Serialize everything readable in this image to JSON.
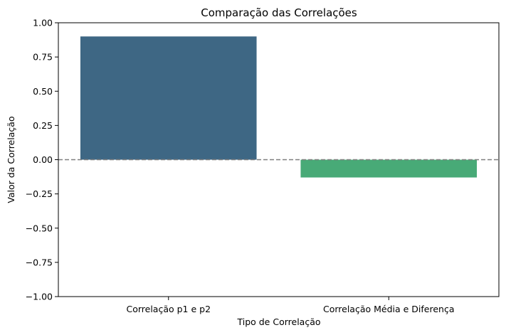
{
  "chart_data": {
    "type": "bar",
    "title": "Comparação das Correlações",
    "xlabel": "Tipo de Correlação",
    "ylabel": "Valor da Correlação",
    "categories": [
      "Correlação p1 e p2",
      "Correlação Média e Diferença"
    ],
    "values": [
      0.9,
      -0.13
    ],
    "colors": [
      "#3e6784",
      "#48aa77"
    ],
    "ylim": [
      -1.0,
      1.0
    ],
    "yticks": [
      "−1.00",
      "−0.75",
      "−0.50",
      "−0.25",
      "0.00",
      "0.25",
      "0.50",
      "0.75",
      "1.00"
    ],
    "ytick_values": [
      -1.0,
      -0.75,
      -0.5,
      -0.25,
      0.0,
      0.25,
      0.5,
      0.75,
      1.0
    ],
    "reference_line": {
      "value": 0.0,
      "style": "dashed",
      "color": "#808080"
    },
    "grid": false,
    "legend": "none"
  }
}
